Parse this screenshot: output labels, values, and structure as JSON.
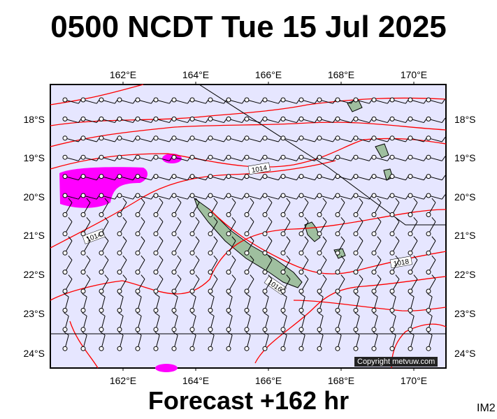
{
  "title": "0500 NCDT Tue 15 Jul 2025",
  "footer": "Forecast +162 hr",
  "corner_label": "IM2",
  "copyright": "Copyright metvuw.com",
  "map": {
    "lon_labels": [
      "162°E",
      "164°E",
      "166°E",
      "168°E",
      "170°E"
    ],
    "lat_labels": [
      "18°S",
      "19°S",
      "20°S",
      "21°S",
      "22°S",
      "23°S",
      "24°S"
    ],
    "isobar_labels": [
      "1014",
      "1014",
      "1016",
      "1018"
    ],
    "colors": {
      "sea": "#e6e6ff",
      "isobar": "#ff0000",
      "precip": "#ff00ff",
      "land": "#9fbf9f",
      "barb": "#000000"
    }
  }
}
